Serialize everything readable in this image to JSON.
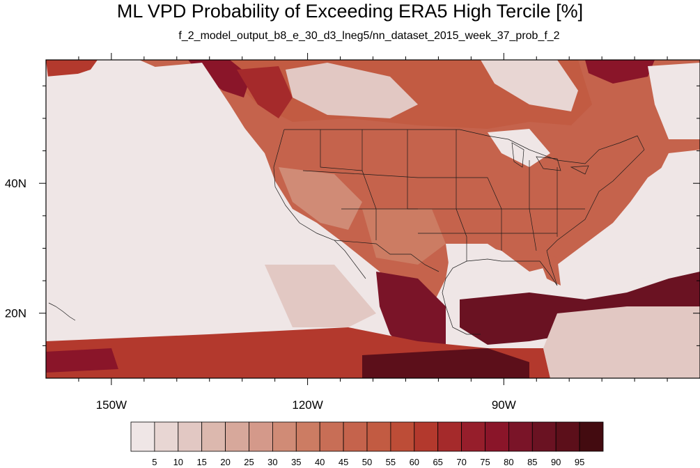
{
  "title": "ML VPD Probability of Exceeding ERA5 High Tercile [%]",
  "subtitle": "f_2_model_output_b8_e_30_d3_lneg5/nn_dataset_2015_week_37_prob_f_2",
  "axes": {
    "lon_range": [
      -160,
      -60
    ],
    "lat_range": [
      10,
      59
    ],
    "lon_ticks": [
      {
        "value": -150,
        "label": "150W"
      },
      {
        "value": -120,
        "label": "120W"
      },
      {
        "value": -90,
        "label": "90W"
      }
    ],
    "lat_ticks": [
      {
        "value": 40,
        "label": "40N"
      },
      {
        "value": 20,
        "label": "20N"
      }
    ]
  },
  "colorbar": {
    "labels": [
      "5",
      "10",
      "15",
      "20",
      "25",
      "30",
      "35",
      "40",
      "45",
      "50",
      "55",
      "60",
      "65",
      "70",
      "75",
      "80",
      "85",
      "90",
      "95"
    ],
    "colors": [
      "#efe6e6",
      "#e8d6d3",
      "#e2c8c3",
      "#dcb8ae",
      "#d7a89b",
      "#d4998a",
      "#d08b76",
      "#cc7c63",
      "#c86e56",
      "#c5634c",
      "#c25b42",
      "#bd4d37",
      "#b3392d",
      "#a52a2b",
      "#961e2b",
      "#8a1529",
      "#7a1428",
      "#6a1222",
      "#5c0f1a",
      "#430b10"
    ]
  }
}
